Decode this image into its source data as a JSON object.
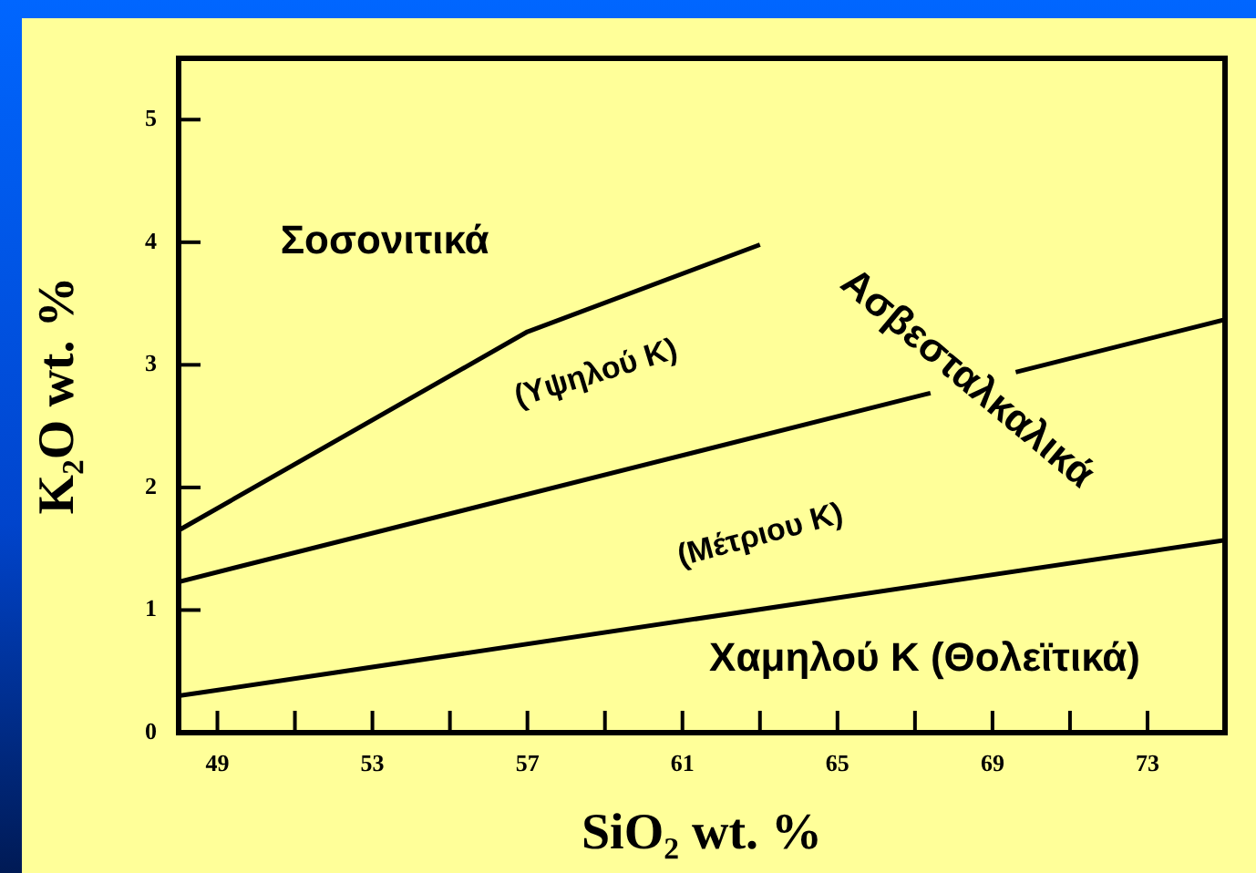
{
  "chart_data": {
    "type": "line",
    "xlabel": "SiO₂ wt. %",
    "ylabel": "K₂O wt. %",
    "xlim": [
      48,
      75
    ],
    "ylim": [
      0,
      5.5
    ],
    "xticks": [
      49,
      {
        "value": 51,
        "label": null
      },
      53,
      {
        "value": 55,
        "label": null
      },
      57,
      {
        "value": 59,
        "label": null
      },
      61,
      {
        "value": 63,
        "label": null
      },
      65,
      {
        "value": 67,
        "label": null
      },
      69,
      {
        "value": 71,
        "label": null
      },
      73
    ],
    "yticks": [
      0,
      1,
      2,
      3,
      4,
      5
    ],
    "series": [
      {
        "color": "#000000",
        "x": [
          48,
          57,
          63
        ],
        "values": [
          1.65,
          3.27,
          3.98
        ]
      },
      {
        "color": "#000000",
        "x": [
          48,
          67.4,
          67.5,
          69.6,
          75
        ],
        "values": [
          1.23,
          2.77,
          null,
          2.94,
          3.37
        ]
      },
      {
        "color": "#000000",
        "x": [
          48,
          75
        ],
        "values": [
          0.3,
          1.57
        ]
      }
    ],
    "annotations": [
      "Σοσονιτικά",
      "(Υψηλού K)",
      "Ασβεσταλκαλικά",
      "(Μέτριου K)",
      "Χαμηλού K (Θολεϊτικά)"
    ],
    "grid": false,
    "legend": false,
    "marker": "none",
    "line_style": "solid"
  }
}
